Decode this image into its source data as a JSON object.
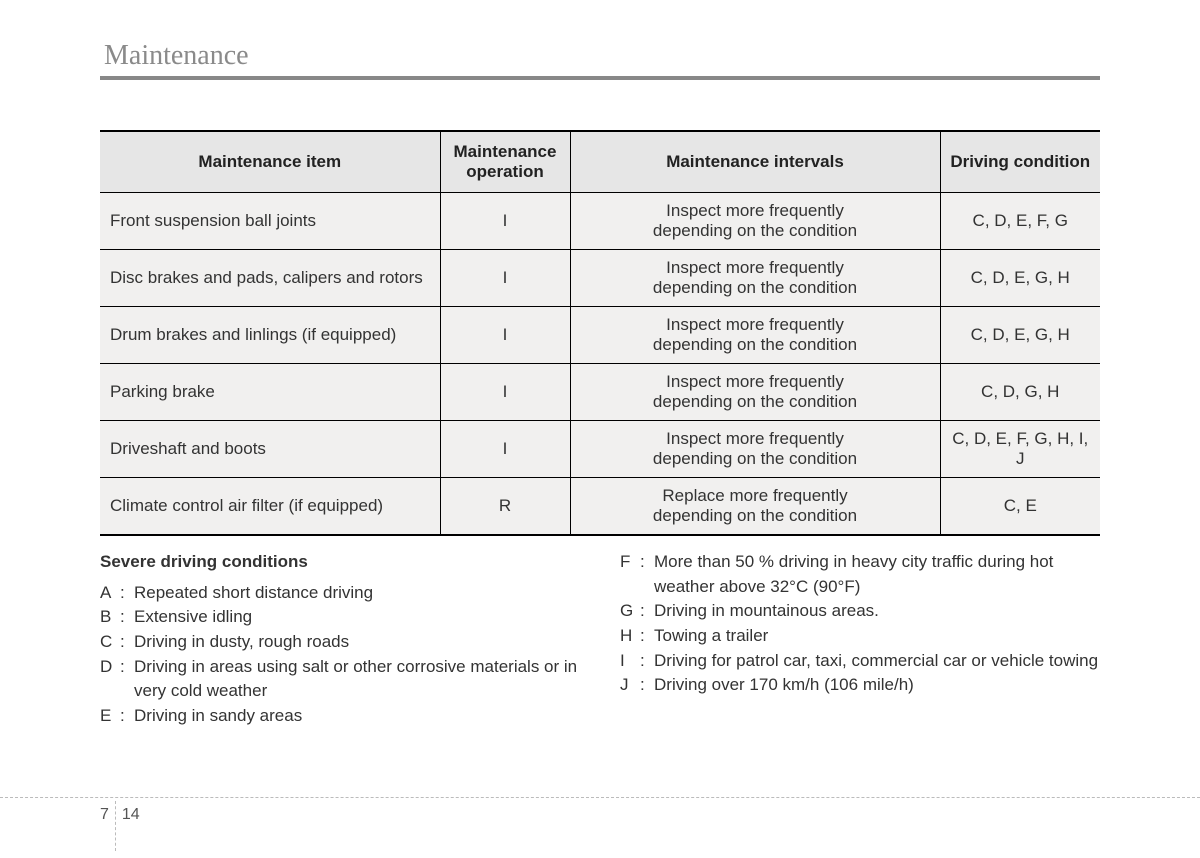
{
  "section_title": "Maintenance",
  "table": {
    "headers": {
      "item": "Maintenance item",
      "operation": "Maintenance\noperation",
      "intervals": "Maintenance intervals",
      "condition": "Driving condition"
    },
    "rows": [
      {
        "item": "Front suspension ball joints",
        "op": "I",
        "interval": "Inspect more frequently\ndepending on the condition",
        "cond": "C, D, E, F, G"
      },
      {
        "item": "Disc brakes and pads, calipers and rotors",
        "op": "I",
        "interval": "Inspect more frequently\ndepending on the condition",
        "cond": "C, D, E, G, H"
      },
      {
        "item": "Drum brakes and linlings (if equipped)",
        "op": "I",
        "interval": "Inspect more frequently\ndepending on the condition",
        "cond": "C, D, E, G, H"
      },
      {
        "item": "Parking brake",
        "op": "I",
        "interval": "Inspect more frequently\ndepending on the condition",
        "cond": "C, D, G, H"
      },
      {
        "item": "Driveshaft and boots",
        "op": "I",
        "interval": "Inspect more frequently\ndepending on the condition",
        "cond": "C, D, E, F, G, H, I, J"
      },
      {
        "item": "Climate control air filter (if equipped)",
        "op": "R",
        "interval": "Replace more frequently\ndepending on the condition",
        "cond": "C, E"
      }
    ]
  },
  "conditions": {
    "title": "Severe driving conditions",
    "left": [
      {
        "k": "A",
        "t": "Repeated short distance driving"
      },
      {
        "k": "B",
        "t": "Extensive idling"
      },
      {
        "k": "C",
        "t": "Driving in dusty, rough roads"
      },
      {
        "k": "D",
        "t": "Driving in areas using salt or other corrosive materials or in very cold weather"
      },
      {
        "k": "E",
        "t": "Driving in sandy areas"
      }
    ],
    "right": [
      {
        "k": "F",
        "t": "More than 50 % driving in heavy city traffic during hot weather above 32°C (90°F)"
      },
      {
        "k": "G",
        "t": "Driving in mountainous areas."
      },
      {
        "k": "H",
        "t": "Towing a trailer"
      },
      {
        "k": "I",
        "t": "Driving for patrol car, taxi, commercial car or vehicle towing"
      },
      {
        "k": "J",
        "t": "Driving over 170 km/h (106 mile/h)"
      }
    ]
  },
  "footer": {
    "chapter": "7",
    "page": "14"
  },
  "style": {
    "header_bg": "#e6e6e6",
    "row_bg": "#f1f0ef",
    "border_color": "#000000",
    "title_color": "#8a8a8a",
    "text_color": "#333333",
    "dashed_color": "#bbbbbb",
    "title_fontsize": 28,
    "body_fontsize": 17
  }
}
